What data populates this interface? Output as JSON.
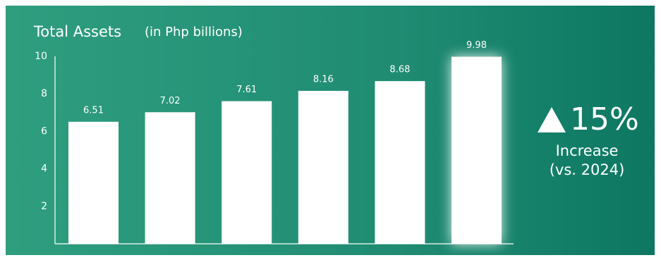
{
  "chart_data": {
    "type": "bar",
    "title": "Total Assets",
    "subtitle": "(in Php billions)",
    "values": [
      6.51,
      7.02,
      7.61,
      8.16,
      8.68,
      9.98
    ],
    "color": "#ffffff",
    "ylim": [
      0,
      10
    ],
    "yticks": [
      2,
      4,
      6,
      8,
      10
    ],
    "grid": false,
    "annotation": {
      "change": "15%",
      "label": "Increase",
      "note": "(vs. 2024)"
    }
  }
}
